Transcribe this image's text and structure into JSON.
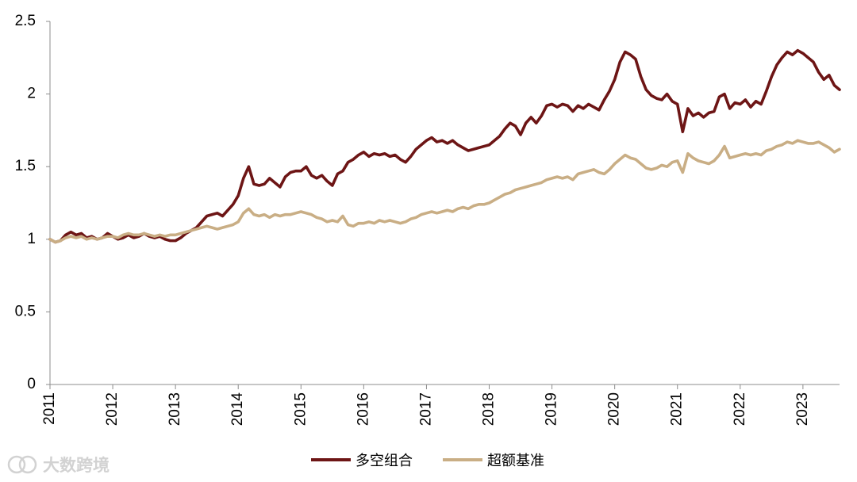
{
  "chart_data": {
    "type": "line",
    "ylim": [
      0,
      2.5
    ],
    "yticks": [
      0,
      0.5,
      1,
      1.5,
      2,
      2.5
    ],
    "xlim": [
      "2011-01",
      "2023-08"
    ],
    "xticks": [
      "2011",
      "2012",
      "2013",
      "2014",
      "2015",
      "2016",
      "2017",
      "2018",
      "2019",
      "2020",
      "2021",
      "2022",
      "2023"
    ],
    "grid": false,
    "legend": "bottom",
    "x": [
      "2011-01",
      "2011-02",
      "2011-03",
      "2011-04",
      "2011-05",
      "2011-06",
      "2011-07",
      "2011-08",
      "2011-09",
      "2011-10",
      "2011-11",
      "2011-12",
      "2012-01",
      "2012-02",
      "2012-03",
      "2012-04",
      "2012-05",
      "2012-06",
      "2012-07",
      "2012-08",
      "2012-09",
      "2012-10",
      "2012-11",
      "2012-12",
      "2013-01",
      "2013-02",
      "2013-03",
      "2013-04",
      "2013-05",
      "2013-06",
      "2013-07",
      "2013-08",
      "2013-09",
      "2013-10",
      "2013-11",
      "2013-12",
      "2014-01",
      "2014-02",
      "2014-03",
      "2014-04",
      "2014-05",
      "2014-06",
      "2014-07",
      "2014-08",
      "2014-09",
      "2014-10",
      "2014-11",
      "2014-12",
      "2015-01",
      "2015-02",
      "2015-03",
      "2015-04",
      "2015-05",
      "2015-06",
      "2015-07",
      "2015-08",
      "2015-09",
      "2015-10",
      "2015-11",
      "2015-12",
      "2016-01",
      "2016-02",
      "2016-03",
      "2016-04",
      "2016-05",
      "2016-06",
      "2016-07",
      "2016-08",
      "2016-09",
      "2016-10",
      "2016-11",
      "2016-12",
      "2017-01",
      "2017-02",
      "2017-03",
      "2017-04",
      "2017-05",
      "2017-06",
      "2017-07",
      "2017-08",
      "2017-09",
      "2017-10",
      "2017-11",
      "2017-12",
      "2018-01",
      "2018-02",
      "2018-03",
      "2018-04",
      "2018-05",
      "2018-06",
      "2018-07",
      "2018-08",
      "2018-09",
      "2018-10",
      "2018-11",
      "2018-12",
      "2019-01",
      "2019-02",
      "2019-03",
      "2019-04",
      "2019-05",
      "2019-06",
      "2019-07",
      "2019-08",
      "2019-09",
      "2019-10",
      "2019-11",
      "2019-12",
      "2020-01",
      "2020-02",
      "2020-03",
      "2020-04",
      "2020-05",
      "2020-06",
      "2020-07",
      "2020-08",
      "2020-09",
      "2020-10",
      "2020-11",
      "2020-12",
      "2021-01",
      "2021-02",
      "2021-03",
      "2021-04",
      "2021-05",
      "2021-06",
      "2021-07",
      "2021-08",
      "2021-09",
      "2021-10",
      "2021-11",
      "2021-12",
      "2022-01",
      "2022-02",
      "2022-03",
      "2022-04",
      "2022-05",
      "2022-06",
      "2022-07",
      "2022-08",
      "2022-09",
      "2022-10",
      "2022-11",
      "2022-12",
      "2023-01",
      "2023-02",
      "2023-03",
      "2023-04",
      "2023-05",
      "2023-06",
      "2023-07",
      "2023-08"
    ],
    "series": [
      {
        "name": "多空组合",
        "color": "#6d1515",
        "values": [
          1.0,
          0.98,
          0.99,
          1.03,
          1.05,
          1.03,
          1.04,
          1.01,
          1.02,
          1.0,
          1.01,
          1.04,
          1.02,
          1.0,
          1.01,
          1.03,
          1.01,
          1.02,
          1.04,
          1.02,
          1.01,
          1.02,
          1.0,
          0.99,
          0.99,
          1.01,
          1.04,
          1.06,
          1.08,
          1.12,
          1.16,
          1.17,
          1.18,
          1.16,
          1.2,
          1.24,
          1.3,
          1.42,
          1.5,
          1.38,
          1.37,
          1.38,
          1.42,
          1.39,
          1.36,
          1.43,
          1.46,
          1.47,
          1.47,
          1.5,
          1.44,
          1.42,
          1.44,
          1.4,
          1.37,
          1.45,
          1.47,
          1.53,
          1.55,
          1.58,
          1.6,
          1.57,
          1.59,
          1.58,
          1.59,
          1.57,
          1.58,
          1.55,
          1.53,
          1.57,
          1.62,
          1.65,
          1.68,
          1.7,
          1.67,
          1.68,
          1.66,
          1.68,
          1.65,
          1.63,
          1.61,
          1.62,
          1.63,
          1.64,
          1.65,
          1.68,
          1.71,
          1.76,
          1.8,
          1.78,
          1.72,
          1.8,
          1.84,
          1.8,
          1.85,
          1.92,
          1.93,
          1.91,
          1.93,
          1.92,
          1.88,
          1.92,
          1.9,
          1.93,
          1.91,
          1.89,
          1.96,
          2.02,
          2.1,
          2.22,
          2.29,
          2.27,
          2.24,
          2.12,
          2.03,
          1.99,
          1.97,
          1.96,
          2.0,
          1.95,
          1.93,
          1.74,
          1.9,
          1.85,
          1.87,
          1.84,
          1.87,
          1.88,
          1.98,
          2.0,
          1.9,
          1.94,
          1.93,
          1.96,
          1.91,
          1.95,
          1.93,
          2.02,
          2.12,
          2.2,
          2.25,
          2.29,
          2.27,
          2.3,
          2.28,
          2.25,
          2.22,
          2.15,
          2.1,
          2.13,
          2.06,
          2.03
        ]
      },
      {
        "name": "超额基准",
        "color": "#c9ae85",
        "values": [
          1.0,
          0.98,
          0.99,
          1.01,
          1.02,
          1.01,
          1.02,
          1.0,
          1.01,
          1.0,
          1.01,
          1.02,
          1.02,
          1.01,
          1.03,
          1.04,
          1.03,
          1.03,
          1.04,
          1.03,
          1.02,
          1.03,
          1.02,
          1.03,
          1.03,
          1.04,
          1.05,
          1.06,
          1.07,
          1.08,
          1.09,
          1.08,
          1.07,
          1.08,
          1.09,
          1.1,
          1.12,
          1.18,
          1.21,
          1.17,
          1.16,
          1.17,
          1.15,
          1.17,
          1.16,
          1.17,
          1.17,
          1.18,
          1.19,
          1.18,
          1.17,
          1.15,
          1.14,
          1.12,
          1.13,
          1.12,
          1.16,
          1.1,
          1.09,
          1.11,
          1.11,
          1.12,
          1.11,
          1.13,
          1.12,
          1.13,
          1.12,
          1.11,
          1.12,
          1.14,
          1.15,
          1.17,
          1.18,
          1.19,
          1.18,
          1.19,
          1.2,
          1.19,
          1.21,
          1.22,
          1.21,
          1.23,
          1.24,
          1.24,
          1.25,
          1.27,
          1.29,
          1.31,
          1.32,
          1.34,
          1.35,
          1.36,
          1.37,
          1.38,
          1.39,
          1.41,
          1.42,
          1.43,
          1.42,
          1.43,
          1.41,
          1.45,
          1.46,
          1.47,
          1.48,
          1.46,
          1.45,
          1.48,
          1.52,
          1.55,
          1.58,
          1.56,
          1.55,
          1.52,
          1.49,
          1.48,
          1.49,
          1.51,
          1.5,
          1.53,
          1.54,
          1.46,
          1.59,
          1.56,
          1.54,
          1.53,
          1.52,
          1.54,
          1.58,
          1.64,
          1.56,
          1.57,
          1.58,
          1.59,
          1.58,
          1.59,
          1.58,
          1.61,
          1.62,
          1.64,
          1.65,
          1.67,
          1.66,
          1.68,
          1.67,
          1.66,
          1.66,
          1.67,
          1.65,
          1.63,
          1.6,
          1.62
        ]
      }
    ]
  },
  "watermark": "大数跨境",
  "watermark_icon": "circle-logo-icon"
}
